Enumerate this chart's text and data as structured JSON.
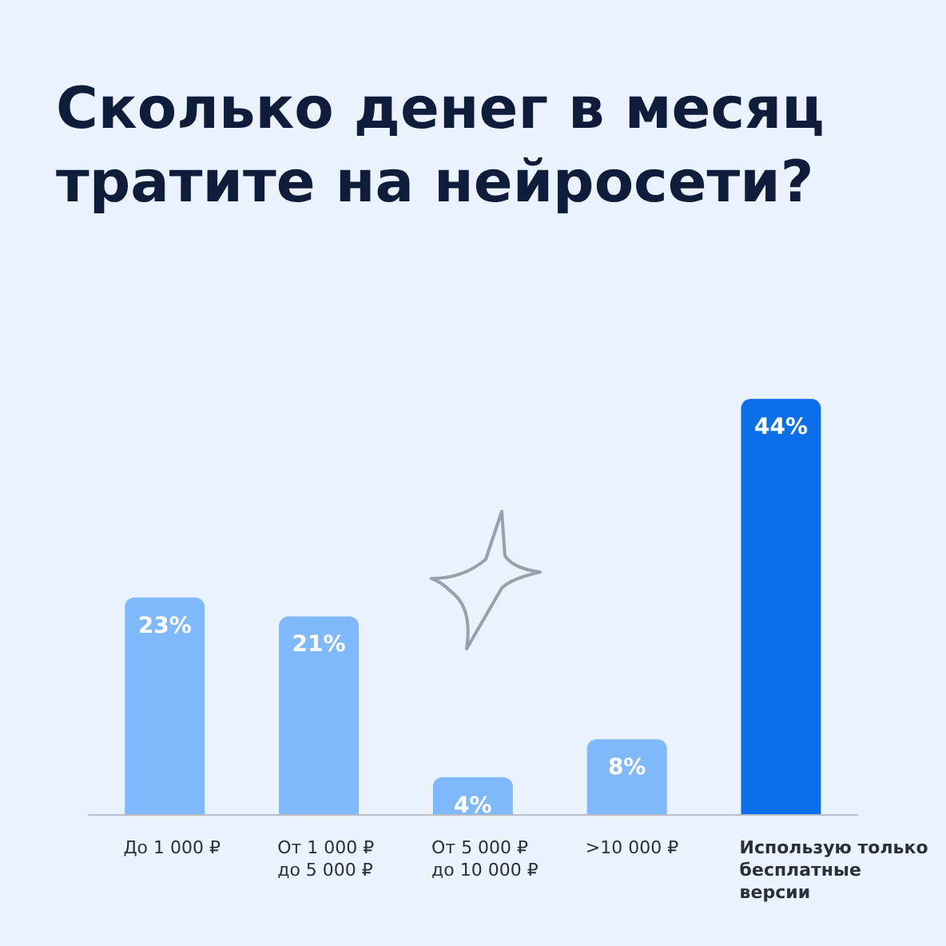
{
  "chart_data": {
    "type": "bar",
    "title": "Сколько денег в месяц тратите на нейросети?",
    "categories": [
      "До 1 000 ₽",
      "От 1 000 ₽\nдо 5 000 ₽",
      "От 5 000 ₽\nдо 10 000 ₽",
      ">10 000 ₽",
      "Использую только\nбесплатные\nверсии"
    ],
    "values": [
      23,
      21,
      4,
      8,
      44
    ],
    "value_labels": [
      "23%",
      "21%",
      "4%",
      "8%",
      "44%"
    ],
    "colors": [
      "#80b9fb",
      "#80b9fb",
      "#80b9fb",
      "#80b9fb",
      "#0b6fe9"
    ],
    "tick_labels": "x"
  }
}
